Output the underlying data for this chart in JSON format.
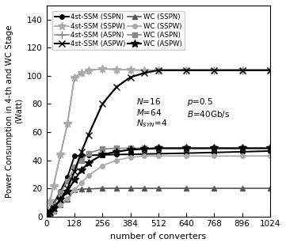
{
  "x": [
    0,
    16,
    32,
    64,
    96,
    128,
    160,
    192,
    256,
    320,
    384,
    448,
    512,
    640,
    768,
    896,
    1024
  ],
  "series": [
    {
      "name": "4st-SSM (SSPN)",
      "color": "#000000",
      "marker": "o",
      "markersize": 4,
      "linewidth": 1.4,
      "linestyle": "-",
      "markerfacecolor": "#000000",
      "values": [
        0,
        4,
        9,
        18,
        28,
        43,
        43.2,
        43.4,
        43.8,
        44.0,
        44.2,
        44.4,
        44.6,
        45.0,
        45.5,
        46.0,
        46.5
      ],
      "legend_col": 0
    },
    {
      "name": "4st-SSM (ASPN)",
      "color": "#888888",
      "marker": "+",
      "markersize": 7,
      "linewidth": 1.2,
      "linestyle": "-",
      "markerfacecolor": "none",
      "values": [
        0,
        11,
        22,
        44,
        66,
        99,
        102,
        104,
        105,
        104.5,
        104.2,
        104,
        104,
        104,
        104,
        104,
        104
      ],
      "legend_col": 0
    },
    {
      "name": "WC (SSPN)",
      "color": "#555555",
      "marker": "^",
      "markersize": 5,
      "linewidth": 1.2,
      "linestyle": "-",
      "markerfacecolor": "#555555",
      "values": [
        0,
        2,
        4,
        8,
        12,
        19,
        19.3,
        19.6,
        20,
        20,
        20,
        20,
        20,
        20,
        20,
        20,
        20
      ],
      "legend_col": 0
    },
    {
      "name": "WC (ASPN)",
      "color": "#888888",
      "marker": "s",
      "markersize": 5,
      "linewidth": 1.2,
      "linestyle": "-",
      "markerfacecolor": "#888888",
      "values": [
        0,
        4,
        8,
        17,
        25,
        35,
        40,
        45,
        48,
        48.5,
        48.5,
        48.5,
        48.5,
        48.5,
        48.5,
        48.5,
        48.5
      ],
      "legend_col": 0
    },
    {
      "name": "4st-SSM (SSPW)",
      "color": "#aaaaaa",
      "marker": "*",
      "markersize": 7,
      "linewidth": 1.2,
      "linestyle": "-",
      "markerfacecolor": "#aaaaaa",
      "values": [
        0,
        11,
        22,
        44,
        66,
        99,
        102,
        104,
        105,
        104.5,
        104.2,
        104,
        104,
        104,
        104,
        104,
        104
      ],
      "legend_col": 1
    },
    {
      "name": "4st-SSM (ASPW)",
      "color": "#000000",
      "marker": "x",
      "markersize": 6,
      "linewidth": 1.6,
      "linestyle": "-",
      "markerfacecolor": "none",
      "values": [
        0,
        3,
        6,
        12,
        20,
        32,
        46,
        58,
        80,
        92,
        99,
        102,
        104,
        104,
        104,
        104,
        104
      ],
      "legend_col": 1
    },
    {
      "name": "WC (SSPW)",
      "color": "#aaaaaa",
      "marker": "o",
      "markersize": 4,
      "linewidth": 1.2,
      "linestyle": "-",
      "markerfacecolor": "#aaaaaa",
      "values": [
        0,
        2,
        4,
        8,
        13,
        19,
        24,
        29,
        36,
        40,
        42,
        43,
        43,
        43,
        43,
        43,
        43
      ],
      "legend_col": 1
    },
    {
      "name": "WC (ASPW)",
      "color": "#000000",
      "marker": "*",
      "markersize": 7,
      "linewidth": 1.6,
      "linestyle": "-",
      "markerfacecolor": "#000000",
      "values": [
        0,
        3,
        6,
        12,
        18,
        26,
        33,
        38,
        44,
        46,
        47.5,
        48,
        48.5,
        48.5,
        48.5,
        48.5,
        48.5
      ],
      "legend_col": 1
    }
  ],
  "xlim": [
    0,
    1024
  ],
  "ylim": [
    0,
    150
  ],
  "xticks": [
    0,
    128,
    256,
    384,
    512,
    640,
    768,
    896,
    1024
  ],
  "yticks": [
    0,
    20,
    40,
    60,
    80,
    100,
    120,
    140
  ],
  "xlabel": "number of converters",
  "ylabel": "Power Consumption in 4-th and WC Stage\n(Watt)",
  "figsize": [
    3.61,
    3.11
  ],
  "dpi": 100
}
